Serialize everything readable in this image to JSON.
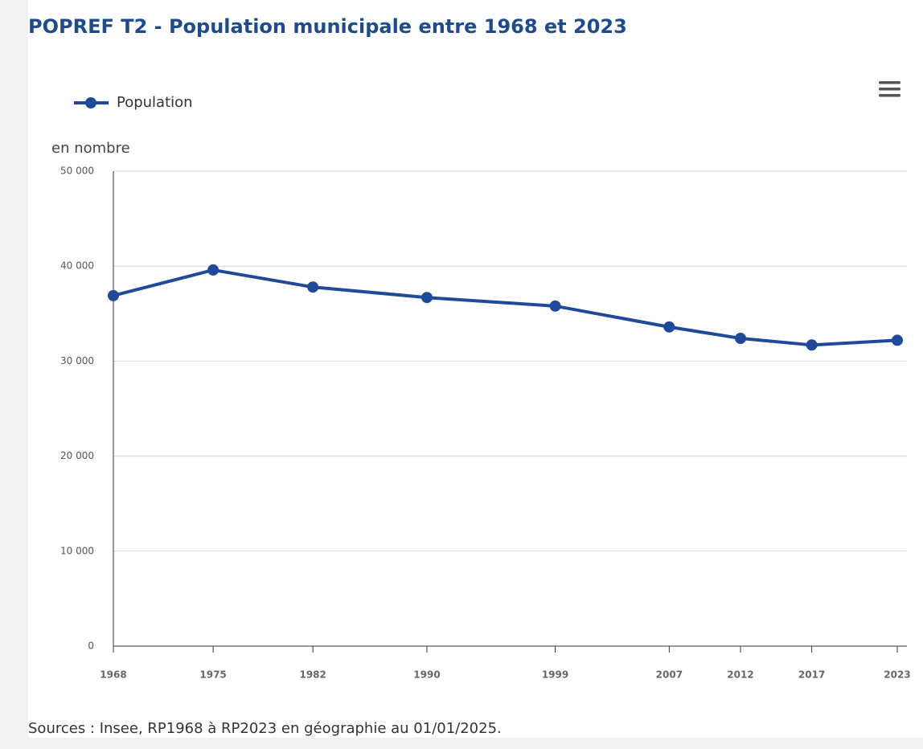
{
  "chart_data": {
    "type": "line",
    "title": "POPREF T2 - Population municipale entre 1968 et 2023",
    "y_label": "en nombre",
    "source": "Sources : Insee, RP1968 à RP2023 en géographie au 01/01/2025.",
    "x": [
      1968,
      1975,
      1982,
      1990,
      1999,
      2007,
      2012,
      2017,
      2023
    ],
    "series": [
      {
        "name": "Population",
        "color": "#1f4a9a",
        "values": [
          36900,
          39600,
          37800,
          36700,
          35800,
          33600,
          32400,
          31700,
          32200
        ]
      }
    ],
    "xlim": [
      1968,
      2023
    ],
    "xticks": [
      1968,
      1975,
      1982,
      1990,
      1999,
      2007,
      2012,
      2017,
      2023
    ],
    "ylim": [
      0,
      50000
    ],
    "yticks": [
      0,
      {
        "value": 10000,
        "label": "10 000"
      },
      {
        "value": 20000,
        "label": "20 000"
      },
      {
        "value": 30000,
        "label": "30 000"
      },
      {
        "value": 40000,
        "label": "40 000"
      },
      {
        "value": 50000,
        "label": "50 000"
      }
    ],
    "grid": true,
    "legend": "top-left"
  }
}
